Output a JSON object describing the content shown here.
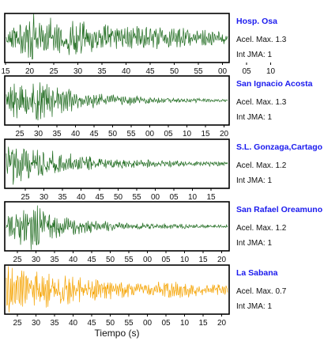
{
  "chart_data": [
    {
      "type": "line",
      "title": "Hosp. Osa",
      "info": {
        "acel": "Acel. Max. 1.3",
        "jma": "Int JMA: 1"
      },
      "color": "#1f6b1f",
      "amplitude": [
        0.25,
        0.95,
        0.8,
        0.65,
        0.55,
        0.45,
        0.45,
        0.4,
        0.35,
        0.3
      ],
      "xticks": [
        "15",
        "20",
        "25",
        "30",
        "35",
        "40",
        "45",
        "50",
        "55",
        "00",
        "05",
        "10"
      ],
      "show_tick_labels": true
    },
    {
      "type": "line",
      "title": "San Ignacio Acosta",
      "info": {
        "acel": "Acel. Max. 1.3",
        "jma": "Int JMA: 1"
      },
      "color": "#1f6b1f",
      "amplitude": [
        0.5,
        1.0,
        0.65,
        0.35,
        0.25,
        0.2,
        0.12,
        0.1,
        0.08,
        0.06
      ],
      "xticks": [
        "25",
        "30",
        "35",
        "40",
        "45",
        "50",
        "55",
        "00",
        "05",
        "10",
        "15",
        "20"
      ],
      "show_tick_labels": true
    },
    {
      "type": "line",
      "title": "S.L. Gonzaga,Cartago",
      "info": {
        "acel": "Acel. Max. 1.2",
        "jma": "Int JMA: 1"
      },
      "color": "#1f6b1f",
      "amplitude": [
        0.9,
        0.8,
        0.5,
        0.35,
        0.25,
        0.18,
        0.15,
        0.12,
        0.1,
        0.08
      ],
      "xticks": [
        "25",
        "30",
        "35",
        "40",
        "45",
        "50",
        "55",
        "00",
        "05",
        "10",
        "15"
      ],
      "show_tick_labels": true
    },
    {
      "type": "line",
      "title": "San Rafael Oreamuno",
      "info": {
        "acel": "Acel. Max. 1.2",
        "jma": "Int JMA: 1"
      },
      "color": "#1f6b1f",
      "amplitude": [
        0.4,
        1.0,
        0.45,
        0.3,
        0.2,
        0.15,
        0.12,
        0.1,
        0.08,
        0.06
      ],
      "xticks": [
        "25",
        "30",
        "35",
        "40",
        "45",
        "50",
        "55",
        "00",
        "05",
        "10",
        "15",
        "20"
      ],
      "show_tick_labels": true
    },
    {
      "type": "line",
      "title": "La Sabana",
      "info": {
        "acel": "Acel. Max. 0.7",
        "jma": "Int JMA: 1"
      },
      "color": "#f5a300",
      "amplitude": [
        0.9,
        0.85,
        0.7,
        0.5,
        0.4,
        0.3,
        0.3,
        0.35,
        0.25,
        0.2
      ],
      "xticks": [
        "25",
        "30",
        "35",
        "40",
        "45",
        "50",
        "55",
        "00",
        "05",
        "10",
        "15",
        "20"
      ],
      "show_tick_labels": true
    }
  ],
  "xlabel": "Tiempo (s)"
}
